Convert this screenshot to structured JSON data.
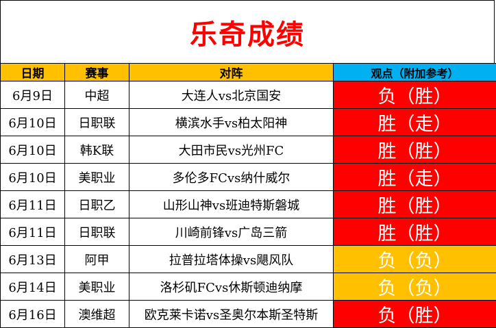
{
  "title": "乐奇成绩",
  "headers": {
    "date": "日期",
    "league": "赛事",
    "match": "对阵",
    "view": "观点（附加参考）"
  },
  "colors": {
    "title": "#ff0000",
    "header_bg": "#ffc000",
    "view_header_bg": "#00b0f0",
    "result_red": "#ff0000",
    "result_orange": "#ffc000"
  },
  "rows": [
    {
      "date": "6月9日",
      "league": "中超",
      "match": "大连人vs北京国安",
      "result": "负（胜）",
      "color": "red"
    },
    {
      "date": "6月10日",
      "league": "日职联",
      "match": "横滨水手vs柏太阳神",
      "result": "胜（走）",
      "color": "red"
    },
    {
      "date": "6月10日",
      "league": "韩K联",
      "match": "大田市民vs光州FC",
      "result": "胜（胜）",
      "color": "red"
    },
    {
      "date": "6月10日",
      "league": "美职业",
      "match": "多伦多FCvs纳什威尔",
      "result": "胜（走）",
      "color": "red"
    },
    {
      "date": "6月11日",
      "league": "日职乙",
      "match": "山形山神vs班迪特斯磐城",
      "result": "胜（胜）",
      "color": "red"
    },
    {
      "date": "6月11日",
      "league": "日职联",
      "match": "川崎前锋vs广岛三箭",
      "result": "胜（胜）",
      "color": "red"
    },
    {
      "date": "6月13日",
      "league": "阿甲",
      "match": "拉普拉塔体操vs飓风队",
      "result": "负（负）",
      "color": "orange"
    },
    {
      "date": "6月14日",
      "league": "美职业",
      "match": "洛杉矶FCvs休斯顿迪纳摩",
      "result": "负（负）",
      "color": "orange"
    },
    {
      "date": "6月16日",
      "league": "澳维超",
      "match": "欧克莱卡诺vs圣奥尔本斯圣特斯",
      "result": "负（胜）",
      "color": "red"
    }
  ]
}
